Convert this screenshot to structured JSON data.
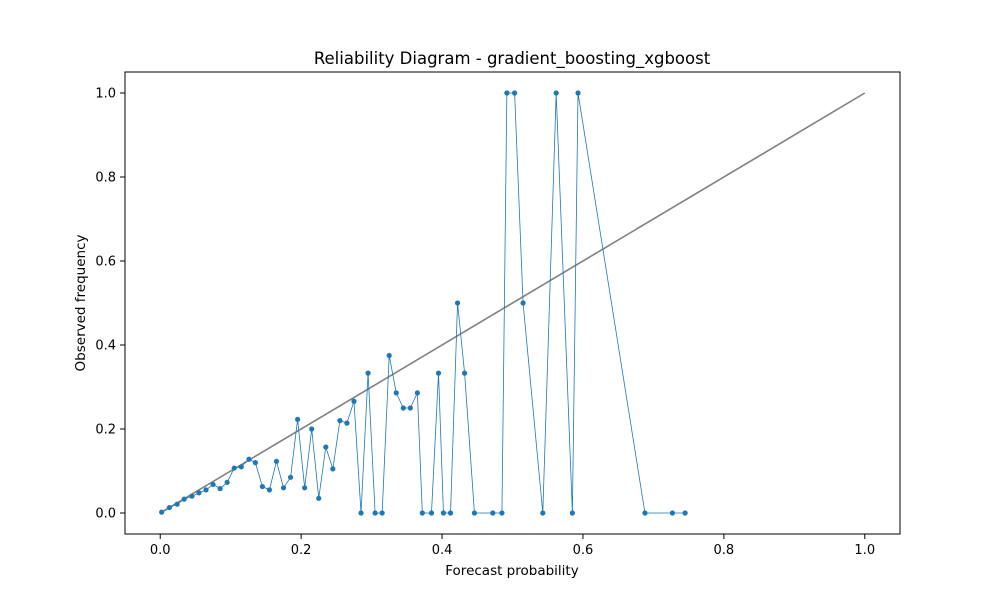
{
  "chart_data": {
    "type": "line",
    "title": "Reliability Diagram - gradient_boosting_xgboost",
    "xlabel": "Forecast probability",
    "ylabel": "Observed frequency",
    "xlim": [
      -0.05,
      1.05
    ],
    "ylim": [
      -0.05,
      1.05
    ],
    "xticks": [
      0.0,
      0.2,
      0.4,
      0.6,
      0.8,
      1.0
    ],
    "xtick_labels": [
      "0.0",
      "0.2",
      "0.4",
      "0.6",
      "0.8",
      "1.0"
    ],
    "yticks": [
      0.0,
      0.2,
      0.4,
      0.6,
      0.8,
      1.0
    ],
    "ytick_labels": [
      "0.0",
      "0.2",
      "0.4",
      "0.6",
      "0.8",
      "1.0"
    ],
    "grid": false,
    "legend": "none",
    "reference_line": {
      "x": [
        0.0,
        1.0
      ],
      "y": [
        0.0,
        1.0
      ],
      "color": "#808080"
    },
    "series": [
      {
        "color": "#1f77b4",
        "x": [
          0.002,
          0.013,
          0.024,
          0.034,
          0.045,
          0.055,
          0.065,
          0.075,
          0.085,
          0.095,
          0.105,
          0.115,
          0.126,
          0.135,
          0.145,
          0.155,
          0.165,
          0.175,
          0.185,
          0.195,
          0.205,
          0.215,
          0.225,
          0.235,
          0.245,
          0.255,
          0.265,
          0.275,
          0.285,
          0.295,
          0.305,
          0.315,
          0.325,
          0.335,
          0.345,
          0.355,
          0.365,
          0.372,
          0.385,
          0.395,
          0.402,
          0.412,
          0.422,
          0.432,
          0.446,
          0.472,
          0.485,
          0.492,
          0.503,
          0.515,
          0.543,
          0.562,
          0.585,
          0.593,
          0.688,
          0.727,
          0.745
        ],
        "y": [
          0.002,
          0.013,
          0.021,
          0.033,
          0.04,
          0.048,
          0.055,
          0.068,
          0.058,
          0.073,
          0.107,
          0.11,
          0.128,
          0.12,
          0.063,
          0.055,
          0.123,
          0.06,
          0.085,
          0.223,
          0.06,
          0.2,
          0.035,
          0.157,
          0.105,
          0.22,
          0.214,
          0.266,
          0.0,
          0.333,
          0.0,
          0.0,
          0.375,
          0.286,
          0.25,
          0.25,
          0.286,
          0.0,
          0.0,
          0.333,
          0.0,
          0.0,
          0.5,
          0.333,
          0.0,
          0.0,
          0.0,
          1.0,
          1.0,
          0.5,
          0.0,
          1.0,
          0.0,
          1.0,
          0.0,
          0.0,
          0.0
        ]
      }
    ]
  }
}
